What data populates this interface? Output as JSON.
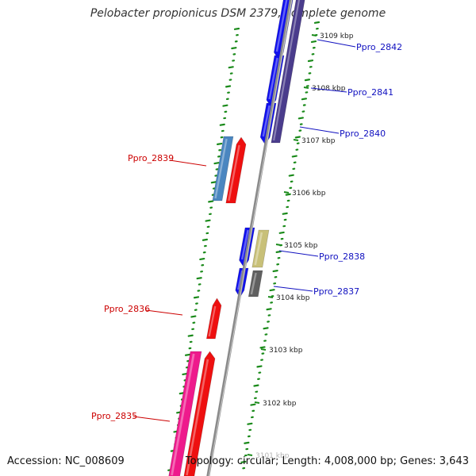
{
  "title": "Pelobacter propionicus DSM 2379, complete genome",
  "footer": {
    "accession": "Accession: NC_008609",
    "summary": "Topology: circular; Length: 4,008,000 bp; Genes: 3,643"
  },
  "colors": {
    "plus_label": "#1010c0",
    "minus_label": "#cc0000",
    "backbone": "#8a8a8a",
    "dots": "#1a8a1a",
    "cds_blue": "#1010ee",
    "cds_red": "#ee1010",
    "rna_steelblue": "#4a86c0",
    "rna_purple": "#4a3c8c",
    "rna_khaki": "#c8c078",
    "rna_gray": "#606060",
    "cds_pink": "#ee1a8c"
  },
  "ticks": [
    "3109 kbp",
    "3108 kbp",
    "3107 kbp",
    "3106 kbp",
    "3105 kbp",
    "3104 kbp",
    "3103 kbp",
    "3102 kbp",
    "3101 kbp"
  ],
  "genes_plus": [
    "Ppro_2842",
    "Ppro_2841",
    "Ppro_2840",
    "Ppro_2838",
    "Ppro_2837"
  ],
  "genes_minus": [
    "Ppro_2839",
    "Ppro_2836",
    "Ppro_2835"
  ]
}
